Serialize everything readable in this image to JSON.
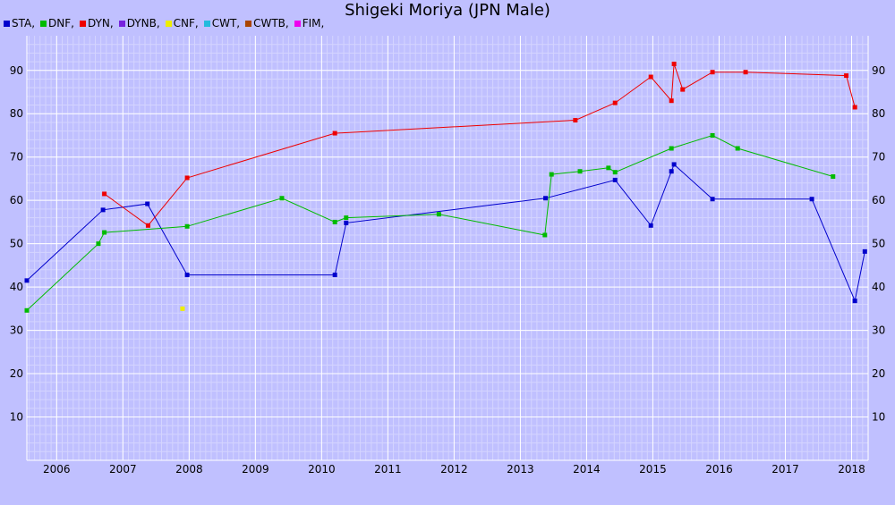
{
  "chart_data": {
    "type": "line",
    "title": "Shigeki Moriya (JPN Male)",
    "xlabel": "",
    "ylabel": "",
    "xlim": [
      2005.55,
      2018.25
    ],
    "ylim": [
      0,
      98
    ],
    "x_ticks": [
      "2006",
      "2007",
      "2008",
      "2009",
      "2010",
      "2011",
      "2012",
      "2013",
      "2014",
      "2015",
      "2016",
      "2017",
      "2018"
    ],
    "y_ticks": [
      "10",
      "20",
      "30",
      "40",
      "50",
      "60",
      "70",
      "80",
      "90"
    ],
    "grid": true,
    "legend_position": "top-left",
    "legend": [
      {
        "label": "STA,",
        "color": "#0000cc"
      },
      {
        "label": "DNF,",
        "color": "#00bb00"
      },
      {
        "label": "DYN,",
        "color": "#ee0000"
      },
      {
        "label": "DYNB,",
        "color": "#7722dd"
      },
      {
        "label": "CNF,",
        "color": "#eeee00"
      },
      {
        "label": "CWT,",
        "color": "#22bbdd"
      },
      {
        "label": "CWTB,",
        "color": "#aa4400"
      },
      {
        "label": "FIM,",
        "color": "#ee00ee"
      }
    ],
    "series": [
      {
        "name": "STA",
        "color": "#0000cc",
        "points": [
          [
            2005.55,
            41.5
          ],
          [
            2006.7,
            57.8
          ],
          [
            2007.37,
            59.2
          ],
          [
            2007.97,
            42.8
          ],
          [
            2010.2,
            42.8
          ],
          [
            2010.37,
            54.8
          ],
          [
            2013.38,
            60.5
          ],
          [
            2014.43,
            64.7
          ],
          [
            2014.97,
            54.2
          ],
          [
            2015.28,
            66.7
          ],
          [
            2015.32,
            68.3
          ],
          [
            2015.9,
            60.3
          ],
          [
            2017.4,
            60.3
          ],
          [
            2018.05,
            36.8
          ],
          [
            2018.2,
            48.2
          ]
        ]
      },
      {
        "name": "DNF",
        "color": "#00bb00",
        "points": [
          [
            2005.55,
            34.6
          ],
          [
            2006.63,
            50
          ],
          [
            2006.72,
            52.6
          ],
          [
            2007.97,
            54
          ],
          [
            2009.4,
            60.5
          ],
          [
            2010.2,
            55
          ],
          [
            2010.37,
            56
          ],
          [
            2011.77,
            56.8
          ],
          [
            2013.37,
            52
          ],
          [
            2013.47,
            66
          ],
          [
            2013.9,
            66.7
          ],
          [
            2014.33,
            67.5
          ],
          [
            2014.43,
            66.5
          ],
          [
            2015.28,
            72
          ],
          [
            2015.9,
            75
          ],
          [
            2016.28,
            72
          ],
          [
            2017.72,
            65.5
          ]
        ]
      },
      {
        "name": "DYN",
        "color": "#ee0000",
        "points": [
          [
            2006.72,
            61.5
          ],
          [
            2007.38,
            54.2
          ],
          [
            2007.97,
            65.2
          ],
          [
            2010.2,
            75.5
          ],
          [
            2013.83,
            78.5
          ],
          [
            2014.43,
            82.5
          ],
          [
            2014.97,
            88.5
          ],
          [
            2015.28,
            83
          ],
          [
            2015.32,
            91.5
          ],
          [
            2015.45,
            85.6
          ],
          [
            2015.9,
            89.6
          ],
          [
            2016.4,
            89.6
          ],
          [
            2017.92,
            88.8
          ],
          [
            2018.05,
            81.5
          ]
        ]
      },
      {
        "name": "CNF",
        "color": "#eeee00",
        "points": [
          [
            2007.9,
            35
          ]
        ]
      }
    ]
  }
}
